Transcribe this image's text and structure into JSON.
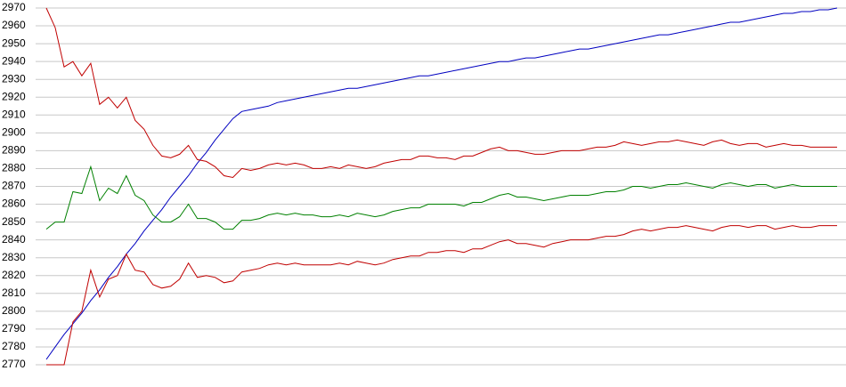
{
  "chart_data": {
    "type": "line",
    "categories": [
      null,
      null,
      null,
      null,
      null,
      null,
      null,
      null,
      null,
      null,
      null,
      null,
      null,
      null,
      null,
      null,
      null,
      null,
      null,
      null,
      null,
      null,
      null,
      null,
      null,
      null,
      null,
      null,
      null,
      null,
      null,
      null,
      null,
      null,
      null,
      null,
      null,
      null,
      null,
      null,
      null,
      null,
      null,
      null,
      null,
      null,
      null,
      null,
      null,
      null,
      null,
      null,
      null,
      null,
      null,
      null,
      null,
      null,
      null,
      null,
      null,
      null,
      null,
      null,
      null,
      null,
      null,
      null,
      null,
      null,
      null,
      null,
      null,
      null,
      null,
      null,
      null,
      null,
      null,
      null,
      null,
      null,
      null,
      null,
      null,
      null,
      null,
      null,
      null,
      null
    ],
    "series": [
      {
        "color": "#0000c0",
        "values": [
          2773,
          2780,
          2787,
          2793,
          2799,
          2806,
          2812,
          2819,
          2825,
          2832,
          2838,
          2845,
          2851,
          2857,
          2864,
          2870,
          2876,
          2883,
          2889,
          2896,
          2902,
          2908,
          2912,
          2913,
          2914,
          2915,
          2917,
          2918,
          2919,
          2920,
          2921,
          2922,
          2923,
          2924,
          2925,
          2925,
          2926,
          2927,
          2928,
          2929,
          2930,
          2931,
          2932,
          2932,
          2933,
          2934,
          2935,
          2936,
          2937,
          2938,
          2939,
          2940,
          2940,
          2941,
          2942,
          2942,
          2943,
          2944,
          2945,
          2946,
          2947,
          2947,
          2948,
          2949,
          2950,
          2951,
          2952,
          2953,
          2954,
          2955,
          2955,
          2956,
          2957,
          2958,
          2959,
          2960,
          2961,
          2962,
          2962,
          2963,
          2964,
          2965,
          2966,
          2967,
          2967,
          2968,
          2968,
          2969,
          2969,
          2970
        ]
      },
      {
        "color": "#c00000",
        "values": [
          2970,
          2959,
          2937,
          2940,
          2932,
          2939,
          2916,
          2920,
          2914,
          2920,
          2907,
          2902,
          2893,
          2887,
          2886,
          2888,
          2893,
          2885,
          2884,
          2881,
          2876,
          2875,
          2880,
          2879,
          2880,
          2882,
          2883,
          2882,
          2883,
          2882,
          2880,
          2880,
          2881,
          2880,
          2882,
          2881,
          2880,
          2881,
          2883,
          2884,
          2885,
          2885,
          2887,
          2887,
          2886,
          2886,
          2885,
          2887,
          2887,
          2889,
          2891,
          2892,
          2890,
          2890,
          2889,
          2888,
          2888,
          2889,
          2890,
          2890,
          2890,
          2891,
          2892,
          2892,
          2893,
          2895,
          2894,
          2893,
          2894,
          2895,
          2895,
          2896,
          2895,
          2894,
          2893,
          2895,
          2896,
          2894,
          2893,
          2894,
          2894,
          2892,
          2893,
          2894,
          2893,
          2893,
          2892,
          2892,
          2892,
          2892
        ]
      },
      {
        "color": "#008000",
        "values": [
          2846,
          2850,
          2850,
          2867,
          2866,
          2881,
          2862,
          2869,
          2866,
          2876,
          2865,
          2862,
          2854,
          2850,
          2850,
          2853,
          2860,
          2852,
          2852,
          2850,
          2846,
          2846,
          2851,
          2851,
          2852,
          2854,
          2855,
          2854,
          2855,
          2854,
          2854,
          2853,
          2853,
          2854,
          2853,
          2855,
          2854,
          2853,
          2854,
          2856,
          2857,
          2858,
          2858,
          2860,
          2860,
          2860,
          2860,
          2859,
          2861,
          2861,
          2863,
          2865,
          2866,
          2864,
          2864,
          2863,
          2862,
          2863,
          2864,
          2865,
          2865,
          2865,
          2866,
          2867,
          2867,
          2868,
          2870,
          2870,
          2869,
          2870,
          2871,
          2871,
          2872,
          2871,
          2870,
          2869,
          2871,
          2872,
          2871,
          2870,
          2871,
          2871,
          2869,
          2870,
          2871,
          2870,
          2870,
          2870,
          2870,
          2870
        ]
      },
      {
        "color": "#c00000",
        "values": [
          2770,
          2770,
          2770,
          2794,
          2800,
          2823,
          2808,
          2818,
          2820,
          2832,
          2823,
          2822,
          2815,
          2813,
          2814,
          2818,
          2827,
          2819,
          2820,
          2819,
          2816,
          2817,
          2822,
          2823,
          2824,
          2826,
          2827,
          2826,
          2827,
          2826,
          2826,
          2826,
          2826,
          2827,
          2826,
          2828,
          2827,
          2826,
          2827,
          2829,
          2830,
          2831,
          2831,
          2833,
          2833,
          2834,
          2834,
          2833,
          2835,
          2835,
          2837,
          2839,
          2840,
          2838,
          2838,
          2837,
          2836,
          2838,
          2839,
          2840,
          2840,
          2840,
          2841,
          2842,
          2842,
          2843,
          2845,
          2846,
          2845,
          2846,
          2847,
          2847,
          2848,
          2847,
          2846,
          2845,
          2847,
          2848,
          2848,
          2847,
          2848,
          2848,
          2846,
          2847,
          2848,
          2847,
          2847,
          2848,
          2848,
          2848
        ]
      }
    ],
    "ylim": [
      2770,
      2970
    ],
    "yticks": [
      2770,
      2780,
      2790,
      2800,
      2810,
      2820,
      2830,
      2840,
      2850,
      2860,
      2870,
      2880,
      2890,
      2900,
      2910,
      2920,
      2930,
      2940,
      2950,
      2960,
      2970
    ],
    "grid": true
  }
}
